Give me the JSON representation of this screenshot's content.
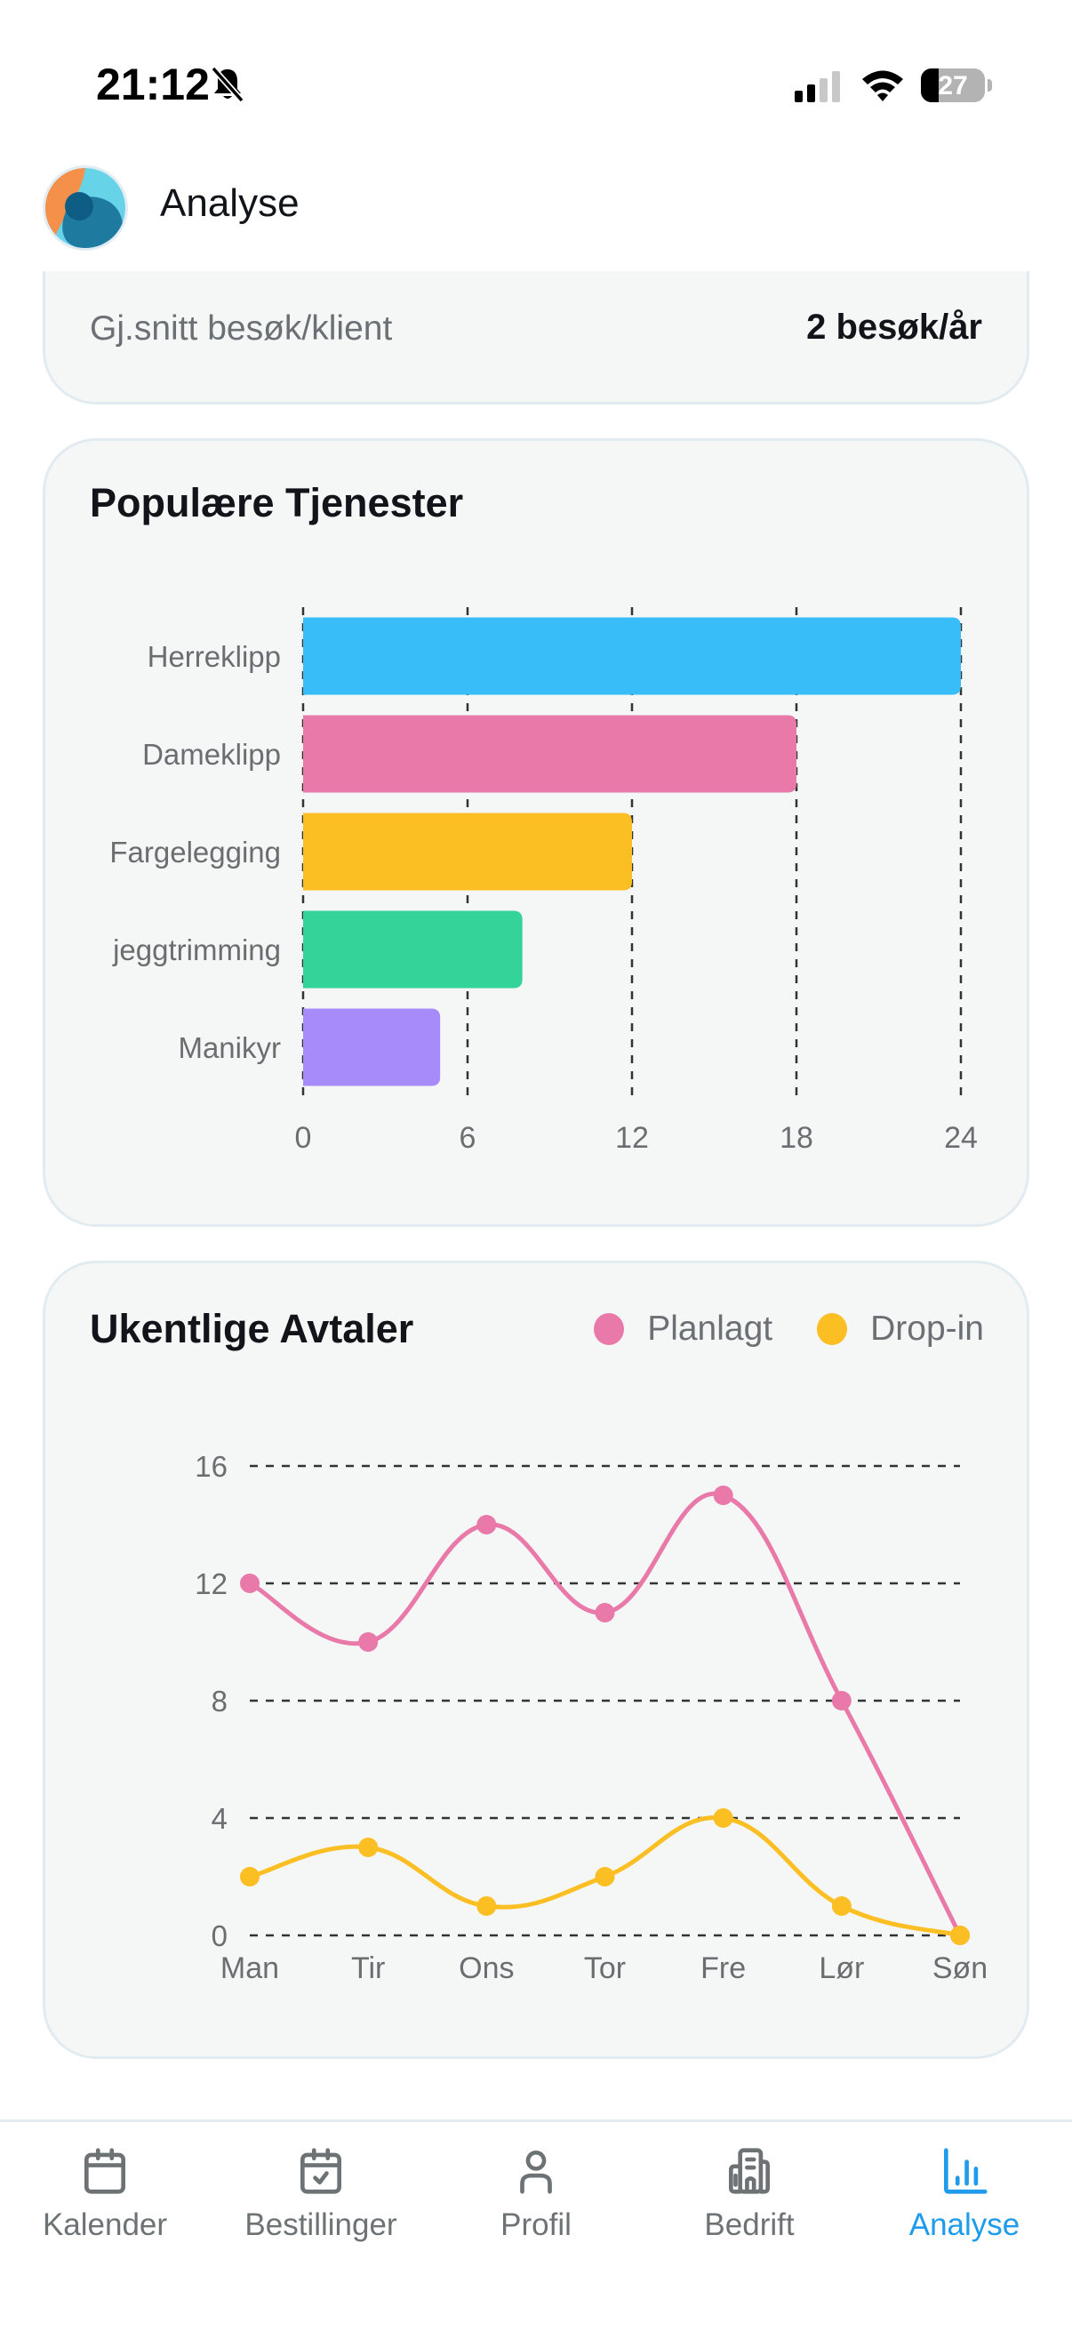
{
  "status_bar": {
    "time": "21:12",
    "silent_mode": true,
    "battery_percent": "27"
  },
  "header": {
    "title": "Analyse",
    "logo": "app-logo"
  },
  "stat_card": {
    "label": "Gj.snitt besøk/klient",
    "value": "2 besøk/år"
  },
  "popular_services": {
    "title": "Populære Tjenester"
  },
  "weekly_appointments": {
    "title": "Ukentlige Avtaler",
    "legend": [
      {
        "label": "Planlagt",
        "color": "#e879a9"
      },
      {
        "label": "Drop-in",
        "color": "#fbbf24"
      }
    ]
  },
  "chart_data": [
    {
      "type": "bar",
      "orientation": "horizontal",
      "title": "Populære Tjenester",
      "categories": [
        "Herreklipp",
        "Dameklipp",
        "Fargelegging",
        "jeggtrimming",
        "Manikyr"
      ],
      "values": [
        24,
        18,
        12,
        8,
        5
      ],
      "colors": [
        "#38bdf8",
        "#e879a9",
        "#fbbf24",
        "#34d399",
        "#a78bfa"
      ],
      "xticks": [
        0,
        6,
        12,
        18,
        24
      ],
      "xlim": [
        0,
        24
      ],
      "grid": "vertical dashed",
      "xlabel": "",
      "ylabel": ""
    },
    {
      "type": "line",
      "title": "Ukentlige Avtaler",
      "categories": [
        "Man",
        "Tir",
        "Ons",
        "Tor",
        "Fre",
        "Lør",
        "Søn"
      ],
      "series": [
        {
          "name": "Planlagt",
          "color": "#e879a9",
          "values": [
            12,
            10,
            14,
            11,
            15,
            8,
            0
          ]
        },
        {
          "name": "Drop-in",
          "color": "#fbbf24",
          "values": [
            2,
            3,
            1,
            2,
            4,
            1,
            0
          ]
        }
      ],
      "yticks": [
        0,
        4,
        8,
        12,
        16
      ],
      "ylim": [
        0,
        16
      ],
      "grid": "horizontal dashed",
      "legend_position": "top-right",
      "smooth": true,
      "xlabel": "",
      "ylabel": ""
    }
  ],
  "tab_bar": {
    "items": [
      {
        "label": "Kalender",
        "icon": "calendar-icon",
        "active": false
      },
      {
        "label": "Bestillinger",
        "icon": "calendar-check-icon",
        "active": false
      },
      {
        "label": "Profil",
        "icon": "user-icon",
        "active": false
      },
      {
        "label": "Bedrift",
        "icon": "building-icon",
        "active": false
      },
      {
        "label": "Analyse",
        "icon": "bar-chart-icon",
        "active": true
      }
    ],
    "active_color": "#1e9bea",
    "inactive_color": "#6d7275"
  }
}
